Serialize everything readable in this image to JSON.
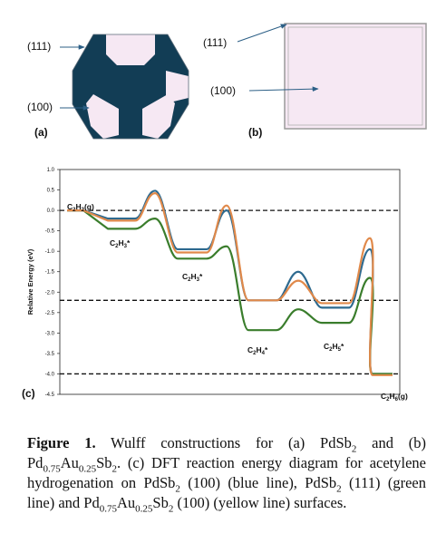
{
  "panel_a": {
    "label": "(a)",
    "facet_labels": [
      "(111)",
      "(100)"
    ],
    "colors": {
      "dark_facet": "#123d55",
      "light_facet": "#f6e8f3"
    }
  },
  "panel_b": {
    "label": "(b)",
    "facet_labels": [
      "(111)",
      "(100)"
    ],
    "colors": {
      "face": "#f6e8f3",
      "edge": "#9a9a9a"
    }
  },
  "chart_data": {
    "type": "line",
    "panel_label": "(c)",
    "ylabel": "Relative Energy (eV)",
    "ylim": [
      -4.5,
      1.0
    ],
    "yticks": [
      "1.0",
      "0.5",
      "0.0",
      "-0.5",
      "-1.0",
      "-1.5",
      "-2.0",
      "-2.5",
      "-3.0",
      "-3.5",
      "-4.0",
      "-4.5"
    ],
    "grid": false,
    "reference_lines": [
      0.0,
      -2.2,
      -4.0
    ],
    "species": [
      {
        "text": "C2H2(g)",
        "parts": [
          [
            "C",
            ""
          ],
          [
            "2",
            "sub"
          ],
          [
            "H",
            ""
          ],
          [
            "2",
            "sub"
          ],
          [
            "(g)",
            ""
          ]
        ]
      },
      {
        "text": "C2H3*",
        "parts": [
          [
            "C",
            ""
          ],
          [
            "2",
            "sub"
          ],
          [
            "H",
            ""
          ],
          [
            "3",
            "sub"
          ],
          [
            "*",
            ""
          ]
        ]
      },
      {
        "text": "C2H3*",
        "parts": [
          [
            "C",
            ""
          ],
          [
            "2",
            "sub"
          ],
          [
            "H",
            ""
          ],
          [
            "3",
            "sub"
          ],
          [
            "*",
            ""
          ]
        ]
      },
      {
        "text": "C2H4*",
        "parts": [
          [
            "C",
            ""
          ],
          [
            "2",
            "sub"
          ],
          [
            "H",
            ""
          ],
          [
            "4",
            "sub"
          ],
          [
            "*",
            ""
          ]
        ]
      },
      {
        "text": "C2H5*",
        "parts": [
          [
            "C",
            ""
          ],
          [
            "2",
            "sub"
          ],
          [
            "H",
            ""
          ],
          [
            "5",
            "sub"
          ],
          [
            "*",
            ""
          ]
        ]
      },
      {
        "text": "C2H6(g)",
        "parts": [
          [
            "C",
            ""
          ],
          [
            "2",
            "sub"
          ],
          [
            "H",
            ""
          ],
          [
            "6",
            "sub"
          ],
          [
            "(g)",
            ""
          ]
        ]
      }
    ],
    "series": [
      {
        "color": "#2e6a8f",
        "minima": [
          0.0,
          -0.2,
          -0.95,
          -2.2,
          -2.38,
          -4.0
        ],
        "barriers": [
          0.48,
          0.0,
          -1.5,
          -0.95
        ]
      },
      {
        "color": "#3a7d2c",
        "minima": [
          0.0,
          -0.45,
          -1.18,
          -2.93,
          -2.75,
          -4.0
        ],
        "barriers": [
          -0.2,
          -0.88,
          -2.42,
          -1.65
        ]
      },
      {
        "color": "#e0894a",
        "minima": [
          0.0,
          -0.25,
          -1.03,
          -2.2,
          -2.27,
          -4.03
        ],
        "barriers": [
          0.42,
          0.12,
          -1.72,
          -0.68
        ]
      }
    ]
  },
  "caption": {
    "figure_label": "Figure 1.",
    "parts": [
      [
        "",
        "  Wulff constructions for (a) PdSb"
      ],
      [
        "sub",
        "2"
      ],
      [
        "",
        " and (b) Pd"
      ],
      [
        "sub",
        "0.75"
      ],
      [
        "",
        "Au"
      ],
      [
        "sub",
        "0.25"
      ],
      [
        "",
        "Sb"
      ],
      [
        "sub",
        "2"
      ],
      [
        "",
        ". (c) DFT reaction energy diagram for acetylene hydrogenation on PdSb"
      ],
      [
        "sub",
        "2"
      ],
      [
        "",
        " (100) (blue line), PdSb"
      ],
      [
        "sub",
        "2"
      ],
      [
        "",
        " (111) (green line) and Pd"
      ],
      [
        "sub",
        "0.75"
      ],
      [
        "",
        "Au"
      ],
      [
        "sub",
        "0.25"
      ],
      [
        "",
        "Sb"
      ],
      [
        "sub",
        "2"
      ],
      [
        "",
        " (100) (yellow line) surfaces."
      ]
    ]
  }
}
